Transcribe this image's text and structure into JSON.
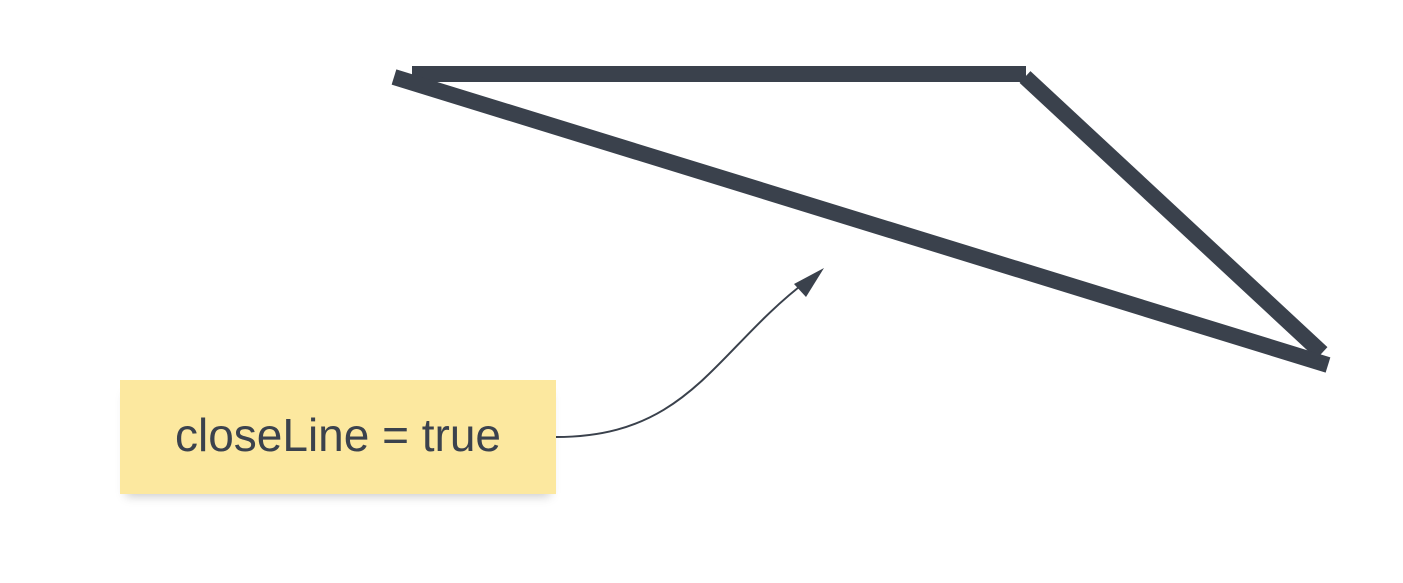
{
  "note": {
    "text": "closeLine = true"
  },
  "colors": {
    "stroke": "#3a414c",
    "connector": "#3a414c",
    "note_background": "#fce89f",
    "note_text": "#3b424d",
    "canvas_background": "#ffffff"
  }
}
